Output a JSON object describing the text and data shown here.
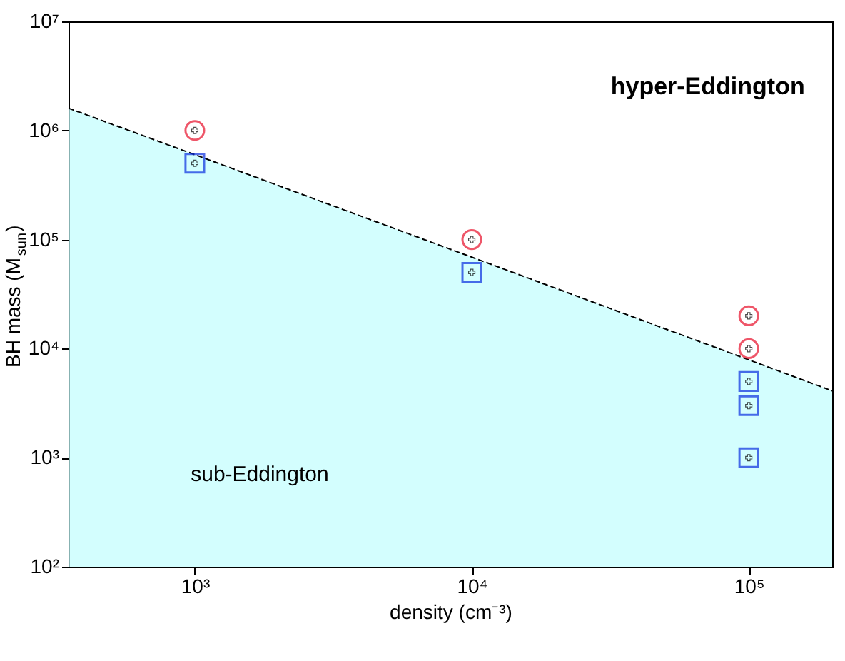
{
  "chart_data": {
    "type": "scatter",
    "xlabel": "density (cm⁻³)",
    "ylabel": "BH mass (M$_{sun}$)",
    "log": "xy",
    "grid": false,
    "xlim": [
      350,
      200000
    ],
    "ylim": [
      100,
      10000000
    ],
    "xticks": [
      {
        "value": 1000,
        "label": "10³"
      },
      {
        "value": 10000,
        "label": "10⁴"
      },
      {
        "value": 100000,
        "label": "10⁵"
      }
    ],
    "yticks": [
      {
        "value": 100,
        "label": "10²"
      },
      {
        "value": 1000,
        "label": "10³"
      },
      {
        "value": 10000,
        "label": "10⁴"
      },
      {
        "value": 100000,
        "label": "10⁵"
      },
      {
        "value": 1000000,
        "label": "10⁶"
      },
      {
        "value": 10000000,
        "label": "10⁷"
      }
    ],
    "series": [
      {
        "type": "area",
        "color": "#c0fefe",
        "line_style": "dashed",
        "x": [
          350,
          1000,
          10000,
          100000,
          200000
        ],
        "values": [
          1600000,
          600000,
          69000,
          7900,
          4100
        ]
      },
      {
        "marker": "circle",
        "color": "#e8102a",
        "x": [
          1000,
          10000,
          100000,
          100000
        ],
        "values": [
          1000000,
          100000,
          20000,
          10000
        ]
      },
      {
        "marker": "square",
        "color": "#0a2ee0",
        "x": [
          1000,
          10000,
          100000,
          100000,
          100000
        ],
        "values": [
          500000,
          50000,
          5000,
          3000,
          1000
        ]
      }
    ],
    "annotations": [
      "hyper-Eddington",
      "sub-Eddington"
    ]
  }
}
